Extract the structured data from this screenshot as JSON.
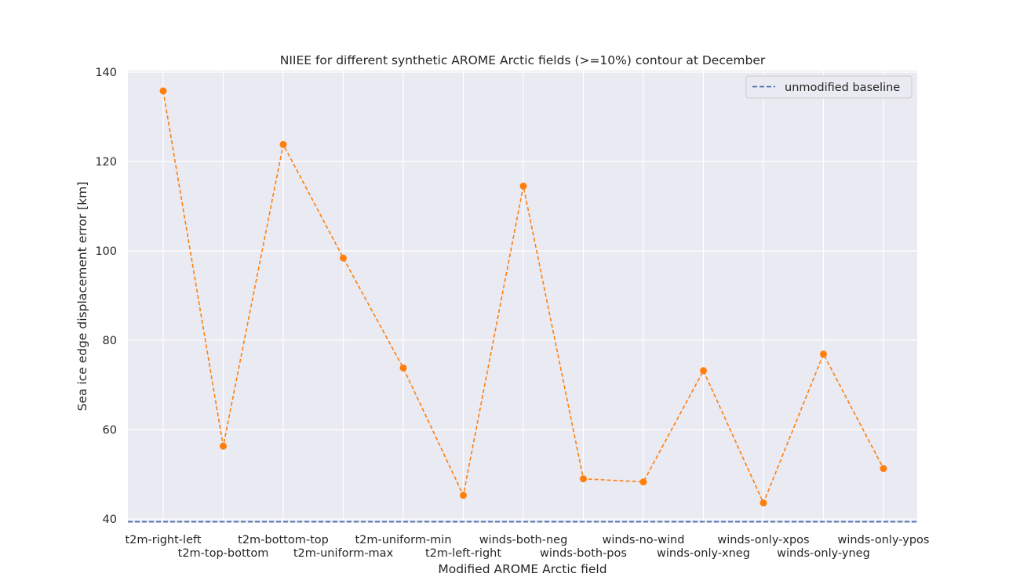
{
  "chart_data": {
    "type": "line",
    "title": "NIIEE for different synthetic AROME Arctic fields (>=10%) contour at December",
    "xlabel": "Modified AROME Arctic field",
    "ylabel": "Sea ice edge displacement error [km]",
    "ylim": [
      39,
      140
    ],
    "yticks": [
      40,
      60,
      80,
      100,
      120,
      140
    ],
    "grid": true,
    "legend_position": "top-right",
    "categories": [
      "t2m-right-left",
      "t2m-top-bottom",
      "t2m-bottom-top",
      "t2m-uniform-max",
      "t2m-uniform-min",
      "t2m-left-right",
      "winds-both-neg",
      "winds-both-pos",
      "winds-no-wind",
      "winds-only-xneg",
      "winds-only-xpos",
      "winds-only-yneg",
      "winds-only-ypos"
    ],
    "series": [
      {
        "values": [
          135.8,
          56.3,
          123.8,
          98.4,
          73.8,
          45.3,
          114.5,
          49.0,
          48.3,
          73.2,
          43.6,
          76.9,
          51.3
        ],
        "color": "#ff7f0e",
        "line_style": "dashed",
        "marker": "circle"
      }
    ],
    "baseline": {
      "name": "unmodified baseline",
      "value": 39.4,
      "color": "#4c72b0",
      "line_style": "dashed"
    },
    "colors": {
      "plot_background": "#eaeaf2",
      "grid": "#ffffff",
      "text": "#262626"
    }
  }
}
